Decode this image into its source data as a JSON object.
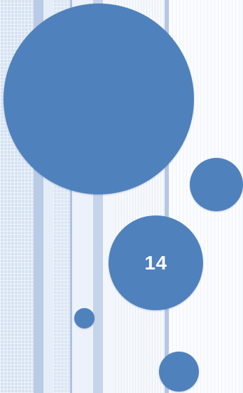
{
  "slide": {
    "number": "14"
  },
  "theme": {
    "circle_color": "#4f81bd",
    "panel_color": "#d6e3f3",
    "stripe_color": "#b9cbe6",
    "text_color": "#ffffff"
  }
}
